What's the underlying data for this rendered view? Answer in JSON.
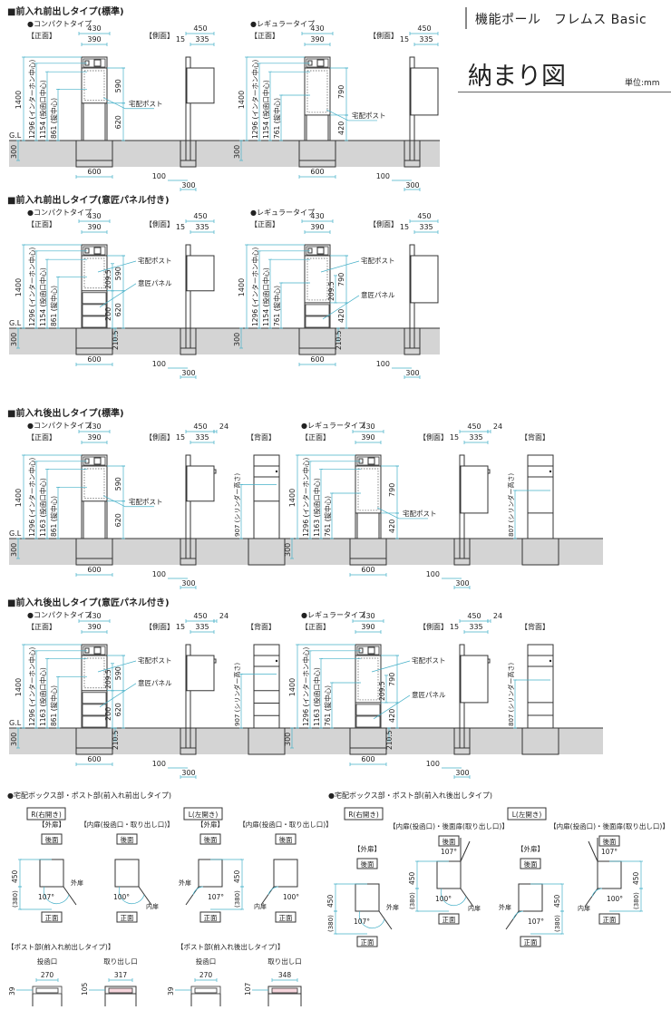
{
  "header": {
    "product": "機能ポール　フレムス Basic",
    "title": "納まり図",
    "unit": "単位:mm"
  },
  "labels": {
    "front": "【正面】",
    "side": "【側面】",
    "back": "【背面】",
    "gl": "G.L",
    "post": "宅配ポスト",
    "panel": "意匠パネル",
    "compact": "●コンパクトタイプ",
    "regular": "●レギュラータイプ"
  },
  "colors": {
    "dimension": "#45b0c8",
    "ground": "#d4d4d4",
    "slot": "#f6d5dc"
  },
  "sections": [
    {
      "title": "■前入れ前出しタイプ(標準)",
      "rear_out": false,
      "panel": false,
      "variants": [
        {
          "w_outer": "430",
          "w_inner": "390",
          "total": "1400",
          "intercom": "1296 (インターホン中心)",
          "slot": "1154 (投函口中心)",
          "lock": "861 (錠中心)",
          "box": "590",
          "lower": "620",
          "ground": "300",
          "footing": "600",
          "side_total": "450",
          "side_post": "15",
          "side_box": "335",
          "side_pole": "100",
          "side_footing": "300"
        },
        {
          "w_outer": "430",
          "w_inner": "390",
          "total": "1400",
          "intercom": "1296 (インターホン中心)",
          "slot": "1154 (投函口中心)",
          "lock": "761 (錠中心)",
          "box": "790",
          "lower": "420",
          "ground": "300",
          "footing": "600",
          "side_total": "450",
          "side_post": "15",
          "side_box": "335",
          "side_pole": "100",
          "side_footing": "300"
        }
      ]
    },
    {
      "title": "■前入れ前出しタイプ(意匠パネル付き)",
      "rear_out": false,
      "panel": true,
      "variants": [
        {
          "w_outer": "430",
          "w_inner": "390",
          "total": "1400",
          "intercom": "1296 (インターホン中心)",
          "slot": "1154 (投函口中心)",
          "lock": "861 (錠中心)",
          "box": "590",
          "lower": "620",
          "panel_gap": "209.5",
          "panel_h": "200",
          "below": "210.5",
          "ground": "300",
          "footing": "600",
          "side_total": "450",
          "side_post": "15",
          "side_box": "335",
          "side_pole": "100",
          "side_footing": "300"
        },
        {
          "w_outer": "430",
          "w_inner": "390",
          "total": "1400",
          "intercom": "1296 (インターホン中心)",
          "slot": "1154 (投函口中心)",
          "lock": "761 (錠中心)",
          "box": "790",
          "lower": "420",
          "panel_gap": "209.5",
          "below": "210.5",
          "ground": "300",
          "footing": "600",
          "side_total": "450",
          "side_post": "15",
          "side_box": "335",
          "side_pole": "100",
          "side_footing": "300"
        }
      ]
    },
    {
      "title": "■前入れ後出しタイプ(標準)",
      "rear_out": true,
      "panel": false,
      "variants": [
        {
          "w_outer": "430",
          "w_inner": "390",
          "total": "1400",
          "intercom": "1296 (インターホン中心)",
          "slot": "1163 (投函口中心)",
          "lock": "861 (錠中心)",
          "box": "590",
          "lower": "620",
          "ground": "300",
          "footing": "600",
          "side_total": "450",
          "side_extra": "24",
          "side_post": "15",
          "side_box": "335",
          "side_pole": "100",
          "side_footing": "300",
          "cylinder": "907 (シリンダー高さ)"
        },
        {
          "w_outer": "430",
          "w_inner": "390",
          "total": "1400",
          "intercom": "1296 (インターホン中心)",
          "slot": "1163 (投函口中心)",
          "lock": "761 (錠中心)",
          "box": "790",
          "lower": "420",
          "ground": "300",
          "footing": "600",
          "side_total": "450",
          "side_extra": "24",
          "side_post": "15",
          "side_box": "335",
          "side_pole": "100",
          "side_footing": "300",
          "cylinder": "807 (シリンダー高さ)"
        }
      ]
    },
    {
      "title": "■前入れ後出しタイプ(意匠パネル付き)",
      "rear_out": true,
      "panel": true,
      "variants": [
        {
          "w_outer": "430",
          "w_inner": "390",
          "total": "1400",
          "intercom": "1296 (インターホン中心)",
          "slot": "1163 (投函口中心)",
          "lock": "861 (錠中心)",
          "box": "590",
          "lower": "620",
          "panel_gap": "209.5",
          "panel_h": "200",
          "below": "210.5",
          "ground": "300",
          "footing": "600",
          "side_total": "450",
          "side_extra": "24",
          "side_post": "15",
          "side_box": "335",
          "side_pole": "100",
          "side_footing": "300",
          "cylinder": "907 (シリンダー高さ)"
        },
        {
          "w_outer": "430",
          "w_inner": "390",
          "total": "1400",
          "intercom": "1296 (インターホン中心)",
          "slot": "1163 (投函口中心)",
          "lock": "761 (錠中心)",
          "box": "790",
          "lower": "420",
          "panel_gap": "209.5",
          "below": "210.5",
          "ground": "300",
          "footing": "600",
          "side_total": "450",
          "side_extra": "24",
          "side_post": "15",
          "side_box": "335",
          "side_pole": "100",
          "side_footing": "300",
          "cylinder": "807 (シリンダー高さ)"
        }
      ]
    }
  ],
  "details": [
    {
      "title": "●宅配ボックス部・ポスト部(前入れ前出しタイプ)",
      "rear_out": false,
      "groups": [
        {
          "tag": "R(右開き)",
          "hand": "R",
          "views": [
            {
              "label": "【外扉】",
              "back": "後面",
              "front": "正面",
              "depth": "450",
              "swing": "(380)",
              "angle": "107°",
              "door": "外扉"
            },
            {
              "label": "【内扉(投函口・取り出し口)】",
              "back": "後面",
              "front": "正面",
              "angle": "100°",
              "door": "内扉"
            }
          ]
        },
        {
          "tag": "L(左開き)",
          "hand": "L",
          "views": [
            {
              "label": "【外扉】",
              "back": "後面",
              "front": "正面",
              "depth": "450",
              "swing": "(380)",
              "angle": "107°",
              "door": "外扉"
            },
            {
              "label": "【内扉(投函口・取り出し口)】",
              "back": "後面",
              "front": "正面",
              "angle": "100°",
              "door": "内扉"
            }
          ]
        }
      ]
    },
    {
      "title": "●宅配ボックス部・ポスト部(前入れ後出しタイプ)",
      "rear_out": true,
      "groups": [
        {
          "tag": "R(右開き)",
          "hand": "R",
          "views": [
            {
              "label": "【外扉】",
              "back": "後面",
              "front": "正面",
              "depth": "450",
              "swing": "(380)",
              "angle": "107°",
              "door": "外扉"
            },
            {
              "label": "【内扉(投函口)・後面扉(取り出し口)】",
              "back": "後面",
              "front": "正面",
              "depth": "450",
              "swing": "(380)",
              "angle": "100°",
              "rear_angle": "107°",
              "door": "内扉"
            }
          ]
        },
        {
          "tag": "L(左開き)",
          "hand": "L",
          "views": [
            {
              "label": "【外扉】",
              "back": "後面",
              "front": "正面",
              "depth": "450",
              "swing": "(380)",
              "angle": "107°",
              "door": "外扉"
            },
            {
              "label": "【内扉(投函口)・後面扉(取り出し口)】",
              "back": "後面",
              "front": "正面",
              "depth": "450",
              "swing": "(380)",
              "angle": "100°",
              "rear_angle": "107°",
              "door": "内扉"
            }
          ]
        }
      ]
    }
  ],
  "posts": [
    {
      "title": "【ポスト部(前入れ前出しタイプ)】",
      "items": [
        {
          "label": "投函口",
          "width": "270",
          "height": "39"
        },
        {
          "label": "取り出し口",
          "width": "317",
          "height": "105"
        }
      ]
    },
    {
      "title": "【ポスト部(前入れ後出しタイプ)】",
      "items": [
        {
          "label": "投函口",
          "width": "270",
          "height": "39"
        },
        {
          "label": "取り出し口",
          "width": "348",
          "height": "107"
        }
      ]
    }
  ]
}
